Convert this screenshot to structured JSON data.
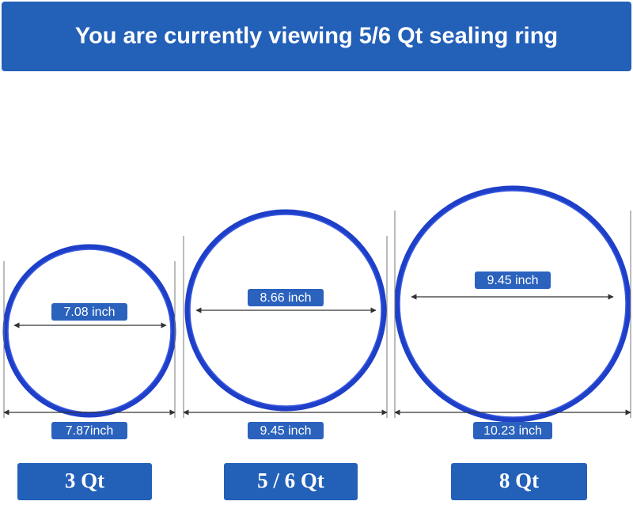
{
  "header": {
    "title": "You are currently viewing 5/6 Qt sealing ring"
  },
  "rings": [
    {
      "inner_label": "7.08 inch",
      "outer_label": "7.87inch",
      "size": "3 Qt"
    },
    {
      "inner_label": "8.66 inch",
      "outer_label": "9.45 inch",
      "size": "5 / 6 Qt"
    },
    {
      "inner_label": "9.45 inch",
      "outer_label": "10.23 inch",
      "size": "8 Qt"
    }
  ]
}
